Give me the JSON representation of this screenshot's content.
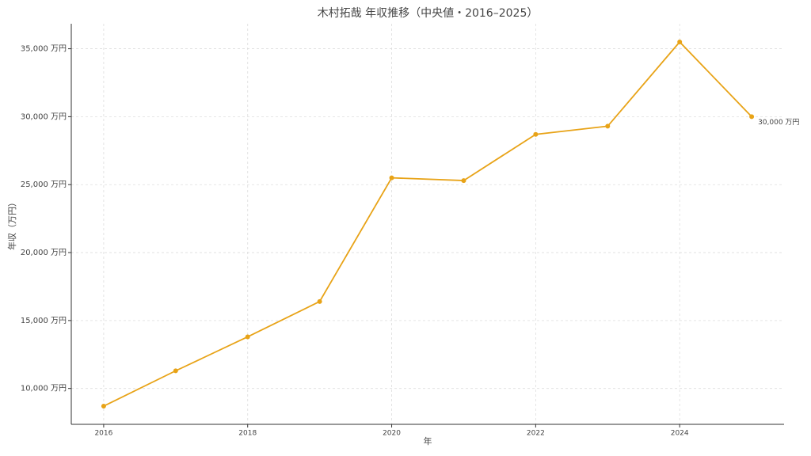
{
  "chart_data": {
    "type": "line",
    "title": "木村拓哉 年収推移（中央値・2016–2025）",
    "x_label": "年",
    "y_label": "年収（万円）",
    "x": [
      2016,
      2017,
      2018,
      2019,
      2020,
      2021,
      2022,
      2023,
      2024,
      2025
    ],
    "series": [
      {
        "color": "#e8a317",
        "values": [
          8700,
          11300,
          13800,
          16400,
          25500,
          25300,
          28700,
          29300,
          35500,
          30000
        ],
        "value_labels": [
          null,
          null,
          null,
          null,
          null,
          null,
          null,
          null,
          null,
          "30,000 万円"
        ]
      }
    ],
    "xlim": [
      2015.55,
      2025.45
    ],
    "ylim": [
      7360,
      36840
    ],
    "xticks": [
      2016,
      2018,
      2020,
      2022,
      2024
    ],
    "yticks": [
      {
        "value": 10000,
        "label": "10,000 万円"
      },
      {
        "value": 15000,
        "label": "15,000 万円"
      },
      {
        "value": 20000,
        "label": "20,000 万円"
      },
      {
        "value": 25000,
        "label": "25,000 万円"
      },
      {
        "value": 30000,
        "label": "30,000 万円"
      },
      {
        "value": 35000,
        "label": "35,000 万円"
      }
    ],
    "grid": true
  }
}
